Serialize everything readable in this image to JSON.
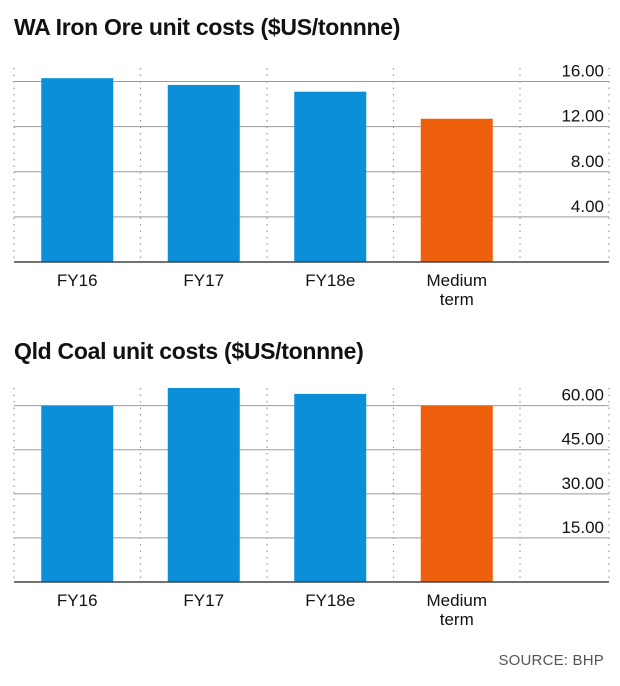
{
  "colors": {
    "bar": "#0a8fd8",
    "highlight": "#ee5f0c",
    "grid": "#9a9a9a",
    "axis": "#444444"
  },
  "source": "SOURCE: BHP",
  "chart_data": [
    {
      "type": "bar",
      "title": "WA Iron Ore unit costs ($US/tonnne)",
      "categories": [
        "FY16",
        "FY17",
        "FY18e",
        "Medium term"
      ],
      "category_lines": [
        [
          "FY16"
        ],
        [
          "FY17"
        ],
        [
          "FY18e"
        ],
        [
          "Medium",
          "term"
        ]
      ],
      "values": [
        16.3,
        15.7,
        15.1,
        12.7
      ],
      "highlight": [
        false,
        false,
        false,
        true
      ],
      "yticks": [
        4,
        8,
        12,
        16
      ],
      "ytick_labels": [
        "4.00",
        "8.00",
        "12.00",
        "16.00"
      ],
      "ylim": [
        0,
        17.2
      ],
      "grid": true,
      "y_axis_position": "right"
    },
    {
      "type": "bar",
      "title": "Qld Coal unit costs ($US/tonnne)",
      "categories": [
        "FY16",
        "FY17",
        "FY18e",
        "Medium term"
      ],
      "category_lines": [
        [
          "FY16"
        ],
        [
          "FY17"
        ],
        [
          "FY18e"
        ],
        [
          "Medium",
          "term"
        ]
      ],
      "values": [
        60,
        66,
        64,
        60
      ],
      "highlight": [
        false,
        false,
        false,
        true
      ],
      "yticks": [
        15,
        30,
        45,
        60
      ],
      "ytick_labels": [
        "15.00",
        "30.00",
        "45.00",
        "60.00"
      ],
      "ylim": [
        0,
        66
      ],
      "grid": true,
      "y_axis_position": "right"
    }
  ]
}
